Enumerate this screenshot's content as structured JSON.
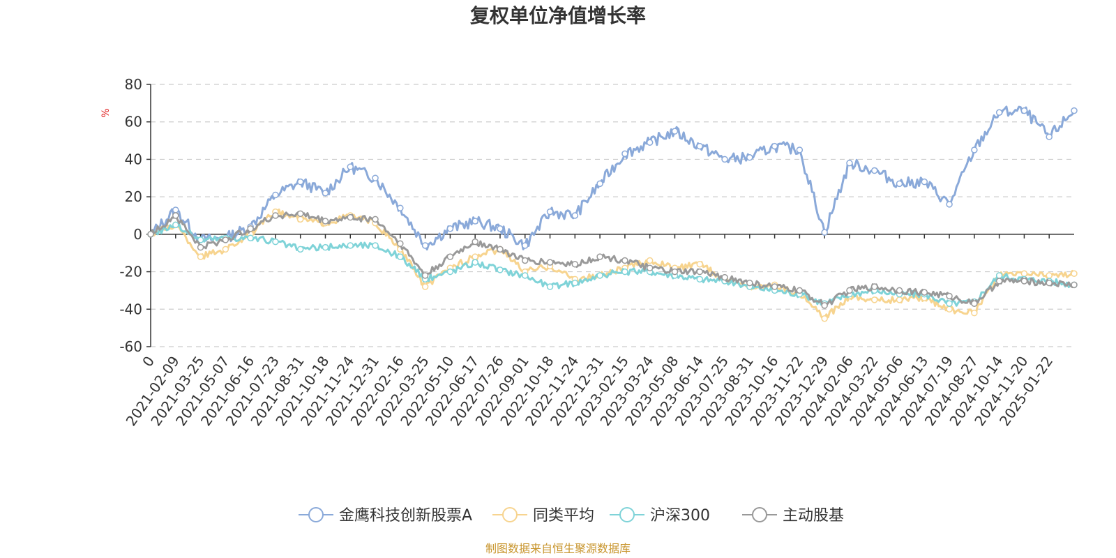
{
  "chart_data": {
    "type": "line",
    "title": "复权单位净值增长率",
    "ylabel": "%",
    "ylim": [
      -60,
      80
    ],
    "yticks": [
      80,
      60,
      40,
      20,
      0,
      -20,
      -40,
      -60
    ],
    "x_start_label": "0",
    "x_tick_labels": [
      "2021-02-09",
      "2021-03-25",
      "2021-05-07",
      "2021-06-16",
      "2021-07-23",
      "2021-08-31",
      "2021-10-18",
      "2021-11-24",
      "2021-12-31",
      "2022-02-16",
      "2022-03-25",
      "2022-05-10",
      "2022-06-17",
      "2022-07-26",
      "2022-09-01",
      "2022-10-18",
      "2022-11-24",
      "2022-12-31",
      "2023-02-15",
      "2023-03-24",
      "2023-05-08",
      "2023-06-14",
      "2023-07-25",
      "2023-08-31",
      "2023-10-16",
      "2023-11-22",
      "2023-12-29",
      "2024-02-06",
      "2024-03-22",
      "2024-05-06",
      "2024-06-13",
      "2024-07-19",
      "2024-08-27",
      "2024-10-14",
      "2024-11-20",
      "2025-01-22"
    ],
    "x_positions": [
      0,
      1,
      2,
      3,
      4,
      5,
      6,
      7,
      8,
      9,
      10,
      11,
      12,
      13,
      14,
      15,
      16,
      17,
      18,
      19,
      20,
      21,
      22,
      23,
      24,
      25,
      26,
      27,
      28,
      29,
      30,
      31,
      32,
      33,
      34,
      35,
      36,
      37
    ],
    "series": [
      {
        "name": "金鹰科技创新股票A",
        "color": "#8aa9d9",
        "values": [
          0,
          13,
          -3,
          -2,
          4,
          21,
          28,
          22,
          36,
          30,
          14,
          -6,
          3,
          7,
          3,
          -6,
          12,
          10,
          27,
          43,
          49,
          55,
          47,
          40,
          41,
          47,
          45,
          1,
          38,
          34,
          27,
          28,
          16,
          45,
          65,
          66,
          52,
          66
        ]
      },
      {
        "name": "同类平均",
        "color": "#f7d48f",
        "values": [
          0,
          5,
          -12,
          -8,
          0,
          12,
          8,
          6,
          10,
          6,
          -8,
          -28,
          -18,
          -12,
          -8,
          -20,
          -17,
          -24,
          -22,
          -18,
          -14,
          -18,
          -16,
          -24,
          -28,
          -27,
          -32,
          -45,
          -33,
          -35,
          -35,
          -34,
          -40,
          -42,
          -22,
          -21,
          -22,
          -21
        ]
      },
      {
        "name": "沪深300",
        "color": "#7fd3d8",
        "values": [
          0,
          5,
          -3,
          -2,
          -2,
          -4,
          -8,
          -7,
          -6,
          -6,
          -12,
          -24,
          -20,
          -15,
          -19,
          -22,
          -28,
          -26,
          -22,
          -20,
          -20,
          -22,
          -24,
          -25,
          -28,
          -30,
          -32,
          -37,
          -32,
          -30,
          -32,
          -32,
          -37,
          -36,
          -22,
          -24,
          -25,
          -27
        ]
      },
      {
        "name": "主动股基",
        "color": "#999999",
        "values": [
          0,
          10,
          -7,
          -3,
          3,
          10,
          11,
          7,
          9,
          8,
          -5,
          -22,
          -12,
          -4,
          -8,
          -14,
          -15,
          -16,
          -12,
          -14,
          -18,
          -20,
          -20,
          -23,
          -26,
          -28,
          -30,
          -38,
          -30,
          -28,
          -30,
          -31,
          -33,
          -37,
          -25,
          -25,
          -26,
          -27
        ]
      }
    ]
  },
  "source_note": "制图数据来自恒生聚源数据库"
}
